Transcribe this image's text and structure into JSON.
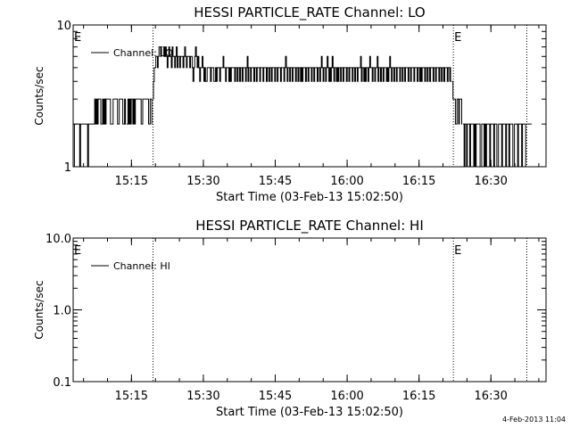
{
  "footer": {
    "timestamp": "4-Feb-2013 11:04"
  },
  "chart_data": [
    {
      "type": "line",
      "title": "HESSI PARTICLE_RATE Channel: LO",
      "xlabel": "Start Time (03-Feb-13 15:02:50)",
      "ylabel": "Counts/sec",
      "yscale": "log",
      "ylim": [
        1,
        10
      ],
      "ytick_labels": [
        "1",
        "10"
      ],
      "xlim": [
        "15:02:50",
        "16:41:30"
      ],
      "xtick_labels": [
        "15:15",
        "15:30",
        "15:45",
        "16:00",
        "16:15",
        "16:30"
      ],
      "legend": {
        "position": "top-left",
        "entries": [
          "Channel: LO"
        ]
      },
      "vlines": [
        {
          "x": "15:19:30",
          "label": ""
        },
        {
          "x": "16:22:10",
          "label": "E"
        },
        {
          "x": "16:37:30",
          "label": ""
        }
      ],
      "left_marker_label": "E",
      "series": [
        {
          "name": "Channel: LO",
          "segments": [
            {
              "t0": "15:03:00",
              "t1": "15:13:50",
              "values": [
                1,
                2,
                2,
                2,
                2,
                2,
                2,
                1,
                2,
                2,
                2,
                2,
                2,
                2,
                2,
                2,
                1,
                2,
                2,
                2,
                2,
                2,
                2,
                2,
                3,
                2,
                3,
                2,
                3,
                3,
                3,
                2,
                2,
                3,
                2,
                3,
                2,
                3,
                3,
                3,
                3,
                3,
                2,
                2,
                2,
                3,
                3,
                3,
                3,
                3,
                2,
                2,
                3,
                3,
                3,
                3,
                2,
                2,
                3,
                2
              ]
            },
            {
              "t0": "15:14:00",
              "t1": "15:19:20",
              "values": [
                2,
                2,
                3,
                2,
                3,
                2,
                3,
                3,
                2,
                3,
                2,
                3,
                3,
                3,
                3,
                3,
                3,
                3,
                2,
                2,
                3,
                3,
                3,
                3,
                3,
                3,
                3,
                2,
                2,
                3,
                3,
                2
              ]
            },
            {
              "t0": "15:19:30",
              "t1": "15:21:30",
              "values": [
                3,
                4,
                5,
                5,
                6,
                6,
                5,
                6,
                7,
                7,
                6,
                7,
                7
              ]
            },
            {
              "t0": "15:21:40",
              "t1": "16:21:40",
              "values": [
                6,
                7,
                6,
                7,
                6,
                5,
                6,
                7,
                6,
                6,
                5,
                7,
                6,
                6,
                5,
                6,
                7,
                5,
                6,
                6,
                5,
                6,
                6,
                6,
                5,
                6,
                7,
                6,
                5,
                6,
                6,
                6,
                5,
                6,
                6,
                5,
                4,
                5,
                6,
                7,
                6,
                5,
                6,
                5,
                4,
                5,
                5,
                6,
                5,
                4,
                5,
                4,
                4,
                5,
                5,
                5,
                5,
                4,
                5,
                5,
                5,
                4,
                4,
                5,
                4,
                5,
                5,
                5,
                4,
                5,
                5,
                5,
                6,
                5,
                5,
                4,
                5,
                5,
                5,
                4,
                5,
                4,
                5,
                5,
                5,
                5,
                4,
                5,
                5,
                4,
                5,
                5,
                4,
                5,
                5,
                4,
                5,
                5,
                5,
                4,
                5,
                6,
                4,
                5,
                5,
                4,
                5,
                5,
                5,
                4,
                5,
                5,
                4,
                5,
                5,
                5,
                4,
                5,
                5,
                5,
                4,
                5,
                5,
                5,
                4,
                5,
                5,
                4,
                5,
                5,
                4,
                5,
                5,
                5,
                4,
                5,
                5,
                4,
                5,
                5,
                5,
                4,
                5,
                5,
                5,
                4,
                5,
                6,
                5,
                4,
                5,
                5,
                4,
                5,
                5,
                4,
                5,
                5,
                5,
                4,
                5,
                5,
                4,
                5,
                5,
                4,
                5,
                4,
                5,
                5,
                5,
                4,
                5,
                5,
                4,
                5,
                5,
                5,
                4,
                5,
                5,
                4,
                5,
                5,
                5,
                4,
                5,
                5,
                4,
                5,
                6,
                5,
                4,
                5,
                5,
                4,
                5,
                6,
                5,
                4,
                5,
                4,
                5,
                6,
                5,
                4,
                5,
                5,
                4,
                5,
                4,
                5,
                5,
                4,
                5,
                5,
                4,
                5,
                5,
                5,
                4,
                5,
                5,
                4,
                5,
                5,
                5,
                4,
                5,
                5,
                4,
                5,
                5,
                4,
                5,
                5,
                5,
                6,
                4,
                5,
                5,
                4,
                5,
                4,
                5,
                5,
                4,
                5,
                6,
                5,
                5,
                4,
                5,
                5,
                4,
                5,
                5,
                6,
                4,
                5,
                5,
                4,
                5,
                5,
                4,
                5,
                5,
                5,
                4,
                5,
                4,
                5,
                6,
                5,
                4,
                5,
                5,
                4,
                5,
                5,
                4,
                5,
                5,
                5,
                4,
                5,
                5,
                4,
                5,
                5,
                4,
                5,
                5,
                5,
                4,
                5,
                5,
                4,
                5,
                5,
                5,
                4,
                5,
                5,
                5,
                4,
                5,
                5,
                4,
                5,
                4,
                5,
                5,
                5,
                4,
                5,
                5,
                4,
                5,
                5,
                4,
                5,
                5,
                5,
                4,
                5,
                5,
                4,
                5,
                5,
                5,
                4,
                5,
                5,
                4,
                5,
                5,
                4,
                5,
                5,
                5,
                4,
                5,
                5,
                4,
                5
              ]
            },
            {
              "t0": "16:21:50",
              "t1": "16:24:00",
              "values": [
                4,
                4,
                3,
                3,
                3,
                2,
                2,
                3,
                3,
                2,
                3,
                3,
                3,
                2
              ]
            },
            {
              "t0": "16:24:10",
              "t1": "16:37:20",
              "values": [
                2,
                2,
                1,
                2,
                2,
                1,
                2,
                2,
                2,
                1,
                2,
                2,
                2,
                2,
                1,
                2,
                1,
                2,
                2,
                2,
                2,
                2,
                1,
                1,
                2,
                2,
                2,
                1,
                2,
                1,
                2,
                2,
                2,
                2,
                1,
                2,
                2,
                2,
                2,
                1,
                2,
                2,
                2,
                1,
                1,
                2,
                2,
                2,
                2,
                1,
                2,
                2,
                2,
                2,
                1,
                2,
                2,
                2,
                1,
                2,
                2,
                2,
                2,
                1,
                1,
                2,
                2,
                2,
                2,
                1,
                2,
                2,
                2,
                2,
                1,
                2,
                2,
                2,
                2,
                1
              ]
            },
            {
              "t0": "16:37:30",
              "t1": "16:38:30",
              "values": [
                2,
                2,
                2,
                2,
                2,
                2,
                2
              ]
            }
          ]
        }
      ]
    },
    {
      "type": "line",
      "title": "HESSI PARTICLE_RATE Channel: HI",
      "xlabel": "Start Time (03-Feb-13 15:02:50)",
      "ylabel": "Counts/sec",
      "yscale": "log",
      "ylim": [
        0.1,
        10
      ],
      "ytick_labels": [
        "0.1",
        "1.0",
        "10.0"
      ],
      "xlim": [
        "15:02:50",
        "16:41:30"
      ],
      "xtick_labels": [
        "15:15",
        "15:30",
        "15:45",
        "16:00",
        "16:15",
        "16:30"
      ],
      "legend": {
        "position": "top-left",
        "entries": [
          "Channel: HI"
        ]
      },
      "vlines": [
        {
          "x": "15:19:30",
          "label": ""
        },
        {
          "x": "16:22:10",
          "label": "E"
        },
        {
          "x": "16:37:30",
          "label": ""
        }
      ],
      "left_marker_label": "E",
      "series": [
        {
          "name": "Channel: HI",
          "segments": []
        }
      ]
    }
  ]
}
